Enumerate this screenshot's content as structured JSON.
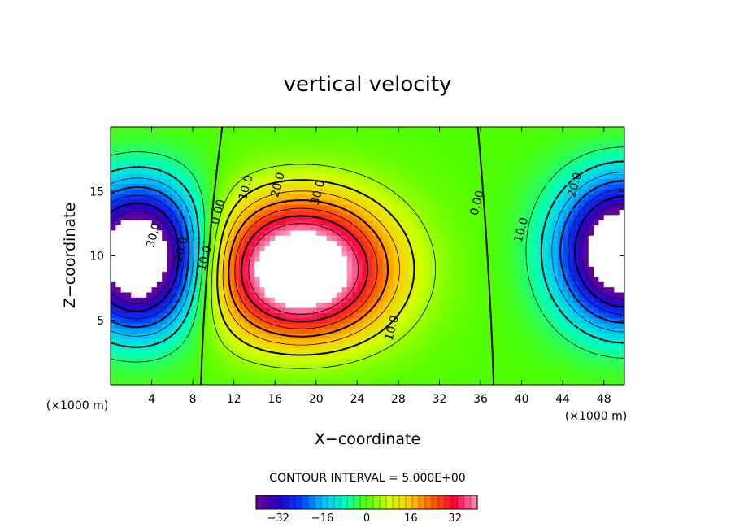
{
  "chart_data": {
    "type": "heatmap",
    "title": "vertical velocity",
    "xlabel": "X−coordinate",
    "ylabel": "Z−coordinate",
    "x_unit_label": "(×1000 m)",
    "z_unit_label": "(×1000 m)",
    "xlim": [
      0,
      50
    ],
    "ylim": [
      0,
      20
    ],
    "x_ticks": [
      "4",
      "8",
      "12",
      "16",
      "20",
      "24",
      "28",
      "32",
      "36",
      "40",
      "44",
      "48"
    ],
    "x_tick_values": [
      4,
      8,
      12,
      16,
      20,
      24,
      28,
      32,
      36,
      40,
      44,
      48
    ],
    "y_ticks": [
      "5",
      "10",
      "15"
    ],
    "y_tick_values": [
      5,
      10,
      15
    ],
    "field_range": [
      -40,
      40
    ],
    "contour_interval_text": "CONTOUR INTERVAL = 5.000E+00",
    "contour_interval": 5,
    "extrema": [
      {
        "kind": "min",
        "x": 2.8,
        "z": 9.8,
        "value": -38
      },
      {
        "kind": "max",
        "x": 18.5,
        "z": 8.5,
        "value": 38
      },
      {
        "kind": "min",
        "x": 50,
        "z": 10.5,
        "value": -30
      }
    ],
    "contour_labels": [
      {
        "text": "0.00",
        "x": 10.5,
        "z": 13.4
      },
      {
        "text": "10.0",
        "x": 13.2,
        "z": 15.3
      },
      {
        "text": "20.0",
        "x": 16.3,
        "z": 15.5
      },
      {
        "text": "30.0",
        "x": 20.2,
        "z": 14.9
      },
      {
        "text": "10.0",
        "x": 27.4,
        "z": 4.4
      },
      {
        "text": "0.00",
        "x": 35.7,
        "z": 14.1
      },
      {
        "text": "10.0",
        "x": 40.0,
        "z": 12.0
      },
      {
        "text": "20.0",
        "x": 45.2,
        "z": 15.5
      },
      {
        "text": "30.0",
        "x": 4.2,
        "z": 11.6
      },
      {
        "text": "20.0",
        "x": 6.9,
        "z": 10.5
      },
      {
        "text": "10.0",
        "x": 9.2,
        "z": 9.8
      }
    ],
    "colorbar": {
      "ticks": [
        "−32",
        "−16",
        "0",
        "16",
        "32"
      ],
      "tick_values": [
        -32,
        -16,
        0,
        16,
        32
      ],
      "min": -40,
      "max": 40
    },
    "grid": false,
    "legend": "colorbar-bottom"
  }
}
